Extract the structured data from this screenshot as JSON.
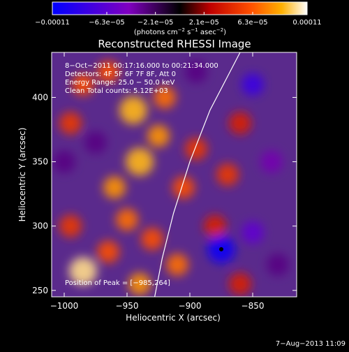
{
  "chart_data": {
    "type": "heatmap",
    "title": "Reconstructed RHESSI Image",
    "xlabel": "Heliocentric X (arcsec)",
    "ylabel": "Heliocentric Y (arcsec)",
    "xlim": [
      -1010,
      -815
    ],
    "ylim": [
      245,
      435
    ],
    "x_ticks": [
      -1000,
      -950,
      -900,
      -850
    ],
    "y_ticks": [
      250,
      300,
      350,
      400
    ],
    "x_tick_labels": [
      "−1000",
      "−950",
      "−900",
      "−850"
    ],
    "y_tick_labels": [
      "250",
      "300",
      "350",
      "400"
    ],
    "colorbar": {
      "range": [
        -0.00011,
        0.00011
      ],
      "tick_values": [
        -0.00011,
        -6.3e-05,
        -2.1e-05,
        2.1e-05,
        6.3e-05,
        0.00011
      ],
      "tick_labels": [
        "−0.00011",
        "−6.3e−05",
        "−2.1e−05",
        "2.1e−05",
        "6.3e−05",
        "0.00011"
      ],
      "unit_prefix": "(photons cm",
      "unit_sup1": "−2",
      "unit_mid1": " s",
      "unit_sup2": "−1",
      "unit_mid2": " asec",
      "unit_sup3": "−2",
      "unit_suffix": ")"
    },
    "annotations": [
      "8−Oct−2011 00:17:16.000 to 00:21:34.000",
      "Detectors: 4F 5F 6F 7F 8F, Att 0",
      "Energy Range: 25.0 − 50.0 keV",
      "Clean     Total counts: 5.12E+03"
    ],
    "peak_label": "Position of Peak = [−985,264]",
    "peak": [
      -985,
      264
    ],
    "min_marker": [
      -875,
      282
    ],
    "limb_curve": [
      [
        -928,
        245
      ],
      [
        -922,
        275
      ],
      [
        -913,
        310
      ],
      [
        -900,
        350
      ],
      [
        -884,
        390
      ],
      [
        -868,
        420
      ],
      [
        -860,
        435
      ]
    ],
    "field_blobs": [
      {
        "x": -985,
        "y": 265,
        "v": 0.0001
      },
      {
        "x": -965,
        "y": 280,
        "v": 6e-05
      },
      {
        "x": -995,
        "y": 300,
        "v": 5e-05
      },
      {
        "x": -950,
        "y": 305,
        "v": 7e-05
      },
      {
        "x": -930,
        "y": 290,
        "v": 6e-05
      },
      {
        "x": -960,
        "y": 330,
        "v": 8e-05
      },
      {
        "x": -940,
        "y": 350,
        "v": 9e-05
      },
      {
        "x": -925,
        "y": 370,
        "v": 8e-05
      },
      {
        "x": -945,
        "y": 390,
        "v": 9e-05
      },
      {
        "x": -920,
        "y": 400,
        "v": 7e-05
      },
      {
        "x": -985,
        "y": 410,
        "v": 6e-05
      },
      {
        "x": -965,
        "y": 420,
        "v": 6e-05
      },
      {
        "x": -995,
        "y": 380,
        "v": 5e-05
      },
      {
        "x": -905,
        "y": 330,
        "v": 6e-05
      },
      {
        "x": -895,
        "y": 360,
        "v": 5e-05
      },
      {
        "x": -910,
        "y": 270,
        "v": 7e-05
      },
      {
        "x": -940,
        "y": 255,
        "v": 8e-05
      },
      {
        "x": -880,
        "y": 300,
        "v": 4e-05
      },
      {
        "x": -870,
        "y": 340,
        "v": 5e-05
      },
      {
        "x": -860,
        "y": 380,
        "v": 4e-05
      },
      {
        "x": -860,
        "y": 255,
        "v": 4e-05
      },
      {
        "x": -875,
        "y": 282,
        "v": -0.0001
      },
      {
        "x": -850,
        "y": 295,
        "v": -6e-05
      },
      {
        "x": -850,
        "y": 410,
        "v": -8e-05
      },
      {
        "x": -835,
        "y": 350,
        "v": -4e-05
      },
      {
        "x": -1000,
        "y": 350,
        "v": -3e-05
      },
      {
        "x": -975,
        "y": 365,
        "v": -3e-05
      },
      {
        "x": -895,
        "y": 420,
        "v": -3e-05
      },
      {
        "x": -830,
        "y": 270,
        "v": -3e-05
      }
    ]
  },
  "footer": {
    "timestamp": "7−Aug−2013 11:09"
  }
}
